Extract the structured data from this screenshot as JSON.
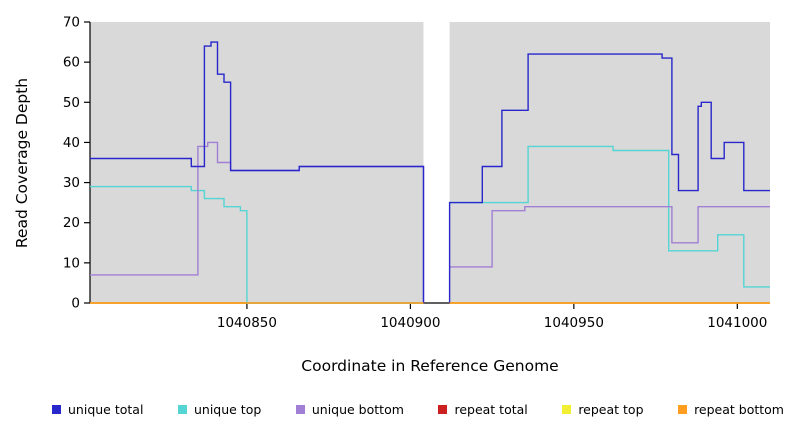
{
  "chart_data": {
    "type": "line",
    "subtype": "step",
    "title": "",
    "xlabel": "Coordinate in Reference Genome",
    "ylabel": "Read Coverage Depth",
    "xlim": [
      1040802,
      1041010
    ],
    "ylim": [
      0,
      70
    ],
    "xticks": [
      1040850,
      1040900,
      1040950,
      1041000
    ],
    "yticks": [
      0,
      10,
      20,
      30,
      40,
      50,
      60,
      70
    ],
    "grid": false,
    "legend_position": "bottom",
    "plot_bg": "#d9d9d9",
    "axis_color": "#000000",
    "gap_band": {
      "x_start": 1040904,
      "x_end": 1040912,
      "color": "#ffffff"
    },
    "series": [
      {
        "name": "repeat total",
        "color": "#cc2020",
        "segments": [
          [
            [
              1040802,
              0
            ],
            [
              1040904,
              0
            ]
          ],
          [
            [
              1040912,
              0
            ],
            [
              1041010,
              0
            ]
          ]
        ]
      },
      {
        "name": "repeat top",
        "color": "#f2ef33",
        "segments": [
          [
            [
              1040802,
              0
            ],
            [
              1040904,
              0
            ]
          ],
          [
            [
              1040912,
              0
            ],
            [
              1041010,
              0
            ]
          ]
        ]
      },
      {
        "name": "unique top",
        "color": "#55d4d4",
        "segments": [
          [
            [
              1040802,
              29
            ],
            [
              1040833,
              28
            ],
            [
              1040837,
              26
            ],
            [
              1040843,
              24
            ],
            [
              1040848,
              23
            ],
            [
              1040850,
              0
            ],
            [
              1040904,
              0
            ]
          ],
          [
            [
              1040912,
              25
            ],
            [
              1040936,
              39
            ],
            [
              1040962,
              38
            ],
            [
              1040979,
              13
            ],
            [
              1040994,
              17
            ],
            [
              1041002,
              4
            ],
            [
              1041010,
              4
            ]
          ]
        ]
      },
      {
        "name": "unique bottom",
        "color": "#a17fd4",
        "segments": [
          [
            [
              1040802,
              7
            ],
            [
              1040835,
              39
            ],
            [
              1040838,
              40
            ],
            [
              1040841,
              35
            ],
            [
              1040845,
              33
            ],
            [
              1040866,
              34
            ],
            [
              1040904,
              0
            ]
          ],
          [
            [
              1040912,
              9
            ],
            [
              1040925,
              23
            ],
            [
              1040935,
              24
            ],
            [
              1040980,
              15
            ],
            [
              1040988,
              24
            ],
            [
              1041010,
              24
            ]
          ]
        ]
      },
      {
        "name": "unique total",
        "color": "#2727cc",
        "segments": [
          [
            [
              1040802,
              36
            ],
            [
              1040833,
              34
            ],
            [
              1040837,
              64
            ],
            [
              1040839,
              65
            ],
            [
              1040841,
              57
            ],
            [
              1040843,
              55
            ],
            [
              1040845,
              33
            ],
            [
              1040866,
              34
            ],
            [
              1040904,
              0
            ]
          ],
          [
            [
              1040912,
              0
            ],
            [
              1040912,
              25
            ],
            [
              1040922,
              34
            ],
            [
              1040928,
              48
            ],
            [
              1040936,
              62
            ],
            [
              1040977,
              61
            ],
            [
              1040980,
              37
            ],
            [
              1040982,
              28
            ],
            [
              1040988,
              49
            ],
            [
              1040989,
              50
            ],
            [
              1040992,
              36
            ],
            [
              1040996,
              40
            ],
            [
              1041002,
              28
            ],
            [
              1041010,
              28
            ]
          ]
        ]
      },
      {
        "name": "repeat bottom",
        "color": "#ff9d21",
        "segments": [
          [
            [
              1040802,
              0
            ],
            [
              1040904,
              0
            ]
          ],
          [
            [
              1040912,
              0
            ],
            [
              1041010,
              0
            ]
          ]
        ]
      }
    ],
    "legend": [
      {
        "label": "unique total",
        "color": "#2727cc"
      },
      {
        "label": "unique top",
        "color": "#55d4d4"
      },
      {
        "label": "unique bottom",
        "color": "#a17fd4"
      },
      {
        "label": "repeat total",
        "color": "#cc2020"
      },
      {
        "label": "repeat top",
        "color": "#f2ef33"
      },
      {
        "label": "repeat bottom",
        "color": "#ff9d21"
      }
    ]
  }
}
